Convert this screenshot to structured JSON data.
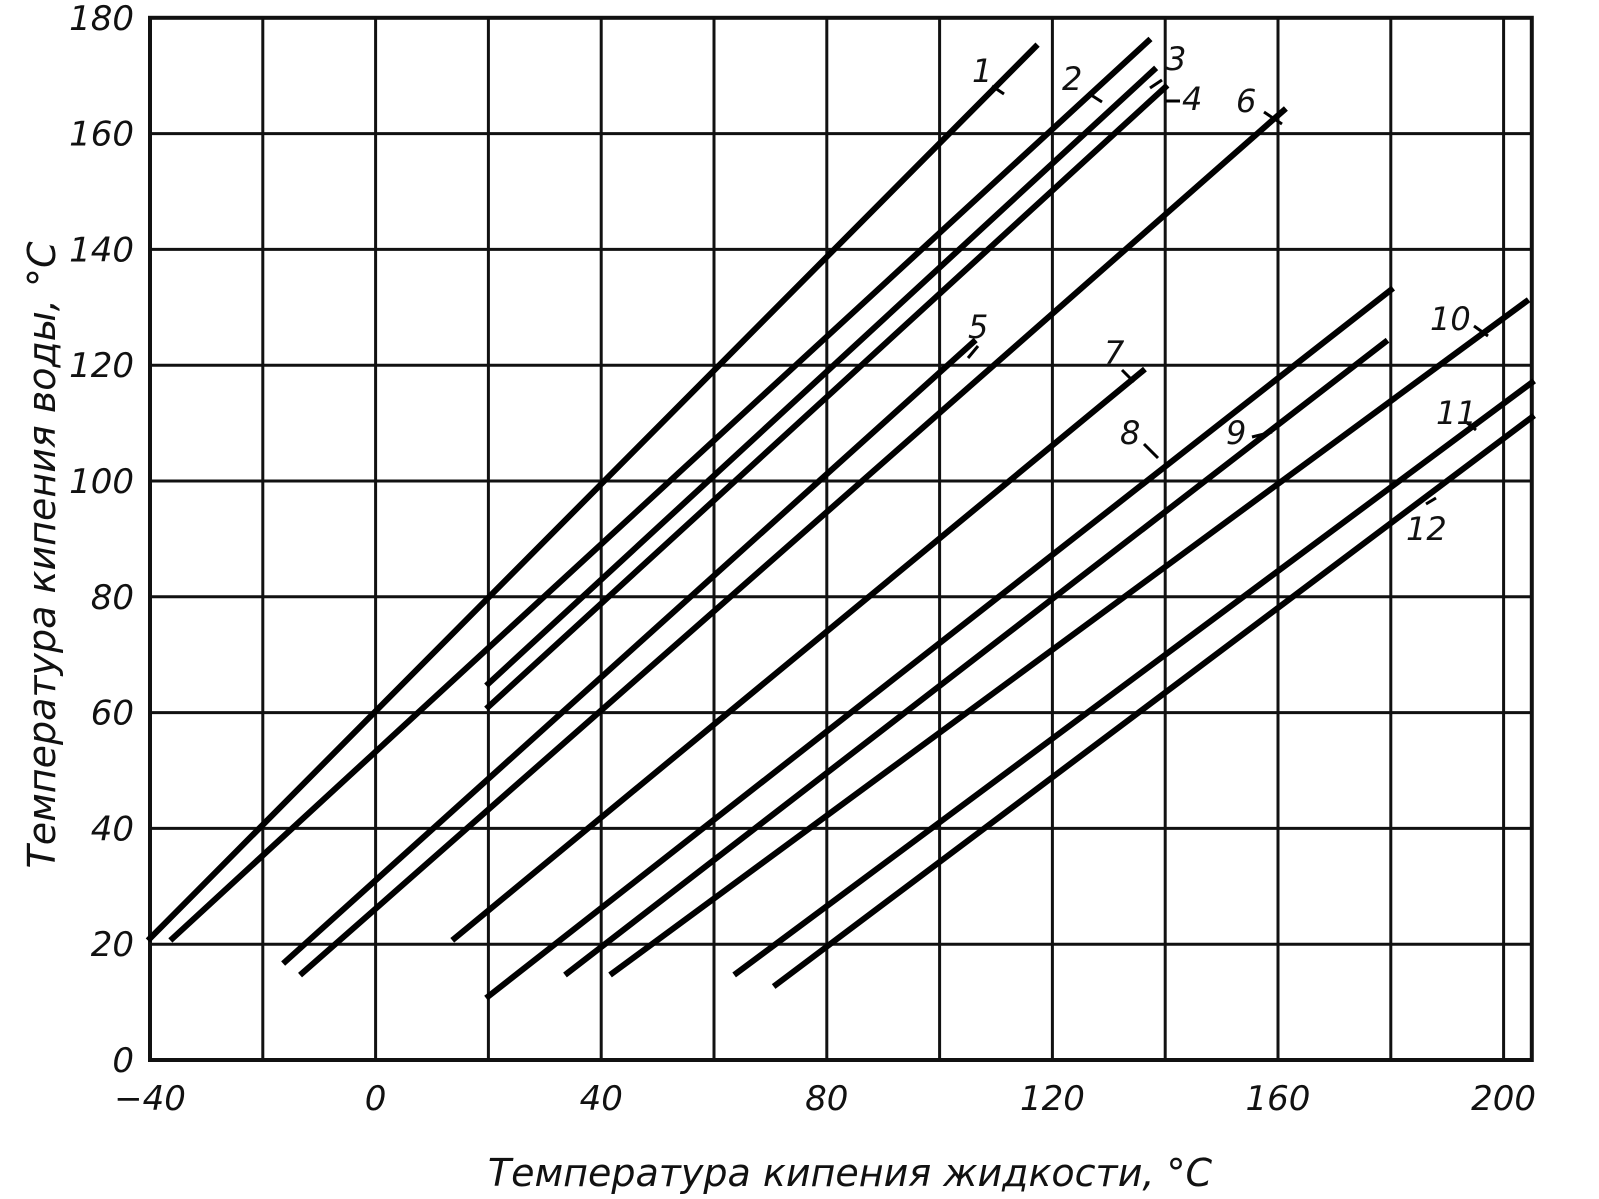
{
  "chart_data": {
    "type": "line",
    "title": "",
    "xlabel": "Температура кипения жидкости, °С",
    "ylabel": "Температура кипения воды, °С",
    "xlim": [
      -40,
      205
    ],
    "ylim": [
      0,
      180
    ],
    "x_ticks": [
      "−40",
      "0",
      "40",
      "80",
      "120",
      "160",
      "200"
    ],
    "y_ticks": [
      "0",
      "20",
      "40",
      "60",
      "80",
      "100",
      "120",
      "140",
      "160",
      "180"
    ],
    "x_tick_values": [
      -40,
      0,
      40,
      80,
      120,
      160,
      200
    ],
    "y_tick_values": [
      0,
      20,
      40,
      60,
      80,
      100,
      120,
      140,
      160,
      180
    ],
    "x_grid": [
      -40,
      -20,
      0,
      20,
      40,
      60,
      80,
      100,
      120,
      140,
      160,
      180,
      200
    ],
    "y_grid": [
      0,
      20,
      40,
      60,
      80,
      100,
      120,
      140,
      160,
      180
    ],
    "grid": true,
    "series": [
      {
        "name": "1",
        "x": [
          -40,
          117
        ],
        "y": [
          21,
          175
        ]
      },
      {
        "name": "2",
        "x": [
          -36,
          137
        ],
        "y": [
          21,
          176
        ]
      },
      {
        "name": "3",
        "x": [
          20,
          138
        ],
        "y": [
          65,
          171
        ]
      },
      {
        "name": "4",
        "x": [
          20,
          140
        ],
        "y": [
          61,
          168
        ]
      },
      {
        "name": "5",
        "x": [
          -16,
          106
        ],
        "y": [
          17,
          124
        ]
      },
      {
        "name": "6",
        "x": [
          -13,
          161
        ],
        "y": [
          15,
          164
        ]
      },
      {
        "name": "7",
        "x": [
          14,
          136
        ],
        "y": [
          21,
          119
        ]
      },
      {
        "name": "8",
        "x": [
          20,
          180
        ],
        "y": [
          11,
          133
        ]
      },
      {
        "name": "9",
        "x": [
          34,
          179
        ],
        "y": [
          15,
          124
        ]
      },
      {
        "name": "10",
        "x": [
          42,
          204
        ],
        "y": [
          15,
          131
        ]
      },
      {
        "name": "11",
        "x": [
          64,
          205
        ],
        "y": [
          15,
          117
        ]
      },
      {
        "name": "12",
        "x": [
          71,
          205
        ],
        "y": [
          13,
          111
        ]
      }
    ],
    "annotations": [
      "1",
      "2",
      "3",
      "4",
      "5",
      "6",
      "7",
      "8",
      "9",
      "10",
      "11",
      "12"
    ]
  }
}
